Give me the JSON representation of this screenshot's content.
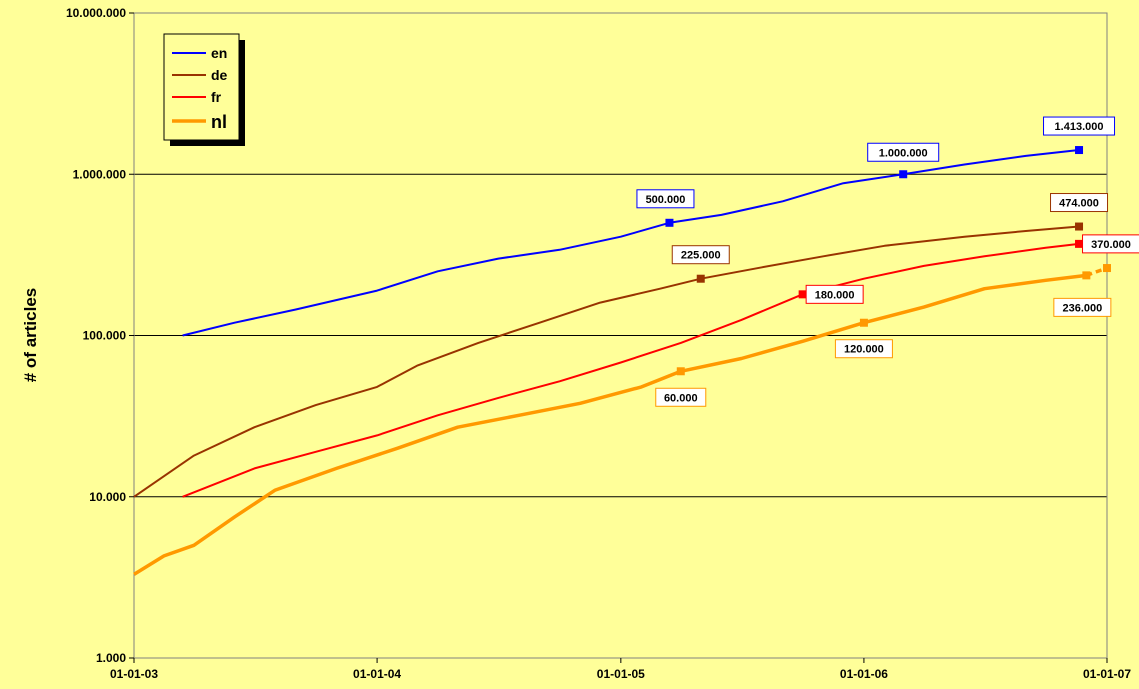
{
  "chart_data": {
    "type": "line",
    "ylabel": "# of articles",
    "yscale": "log",
    "ylim": [
      1000,
      10000000
    ],
    "xlim": [
      "2003-01-01",
      "2007-01-01"
    ],
    "grid": "horizontal",
    "legend_position": "top-left",
    "x_tick_labels": [
      "01-01-03",
      "01-01-04",
      "01-01-05",
      "01-01-06",
      "01-01-07"
    ],
    "x_ticks": [
      "2003-01-01",
      "2004-01-01",
      "2005-01-01",
      "2006-01-01",
      "2007-01-01"
    ],
    "y_tick_labels": [
      "1.000",
      "10.000",
      "100.000",
      "1.000.000",
      "10.000.000"
    ],
    "y_ticks": [
      1000,
      10000,
      100000,
      1000000,
      10000000
    ],
    "series": [
      {
        "name": "en",
        "color": "#0000FF",
        "points": [
          [
            "2003-03-15",
            100000
          ],
          [
            "2003-06-01",
            120000
          ],
          [
            "2003-09-01",
            145000
          ],
          [
            "2004-01-01",
            190000
          ],
          [
            "2004-04-01",
            250000
          ],
          [
            "2004-07-01",
            300000
          ],
          [
            "2004-10-01",
            340000
          ],
          [
            "2005-01-01",
            410000
          ],
          [
            "2005-03-15",
            500000
          ],
          [
            "2005-06-01",
            560000
          ],
          [
            "2005-09-01",
            680000
          ],
          [
            "2005-12-01",
            880000
          ],
          [
            "2006-03-01",
            1000000
          ],
          [
            "2006-06-01",
            1150000
          ],
          [
            "2006-09-01",
            1300000
          ],
          [
            "2006-11-20",
            1413000
          ]
        ]
      },
      {
        "name": "de",
        "color": "#993300",
        "points": [
          [
            "2003-01-01",
            10000
          ],
          [
            "2003-04-01",
            18000
          ],
          [
            "2003-07-01",
            27000
          ],
          [
            "2003-10-01",
            37000
          ],
          [
            "2004-01-01",
            48000
          ],
          [
            "2004-03-01",
            65000
          ],
          [
            "2004-06-01",
            90000
          ],
          [
            "2004-09-01",
            120000
          ],
          [
            "2004-12-01",
            160000
          ],
          [
            "2005-03-01",
            195000
          ],
          [
            "2005-05-01",
            225000
          ],
          [
            "2005-08-01",
            265000
          ],
          [
            "2005-11-01",
            310000
          ],
          [
            "2006-02-01",
            360000
          ],
          [
            "2006-06-01",
            410000
          ],
          [
            "2006-09-01",
            445000
          ],
          [
            "2006-11-20",
            474000
          ]
        ]
      },
      {
        "name": "fr",
        "color": "#FF0000",
        "points": [
          [
            "2003-03-15",
            10000
          ],
          [
            "2003-07-01",
            15000
          ],
          [
            "2003-10-01",
            19000
          ],
          [
            "2004-01-01",
            24000
          ],
          [
            "2004-04-01",
            32000
          ],
          [
            "2004-07-01",
            41000
          ],
          [
            "2004-10-01",
            52000
          ],
          [
            "2005-01-01",
            68000
          ],
          [
            "2005-04-01",
            90000
          ],
          [
            "2005-07-01",
            125000
          ],
          [
            "2005-10-01",
            180000
          ],
          [
            "2006-01-01",
            225000
          ],
          [
            "2006-04-01",
            270000
          ],
          [
            "2006-07-01",
            310000
          ],
          [
            "2006-10-01",
            350000
          ],
          [
            "2006-11-20",
            370000
          ]
        ]
      },
      {
        "name": "nl",
        "color": "#FF9900",
        "points": [
          [
            "2003-01-01",
            3300
          ],
          [
            "2003-02-15",
            4300
          ],
          [
            "2003-04-01",
            5000
          ],
          [
            "2003-06-01",
            7500
          ],
          [
            "2003-08-01",
            11000
          ],
          [
            "2003-11-01",
            15000
          ],
          [
            "2004-02-01",
            20000
          ],
          [
            "2004-05-01",
            27000
          ],
          [
            "2004-08-01",
            32000
          ],
          [
            "2004-11-01",
            38000
          ],
          [
            "2005-02-01",
            48000
          ],
          [
            "2005-04-01",
            60000
          ],
          [
            "2005-07-01",
            72000
          ],
          [
            "2005-10-01",
            92000
          ],
          [
            "2006-01-01",
            120000
          ],
          [
            "2006-04-01",
            150000
          ],
          [
            "2006-07-01",
            195000
          ],
          [
            "2006-10-01",
            220000
          ],
          [
            "2006-12-01",
            236000
          ]
        ],
        "projection": [
          [
            "2006-12-01",
            236000
          ],
          [
            "2007-01-01",
            262000
          ]
        ]
      }
    ],
    "annotations": [
      {
        "text": "1.413.000",
        "x": "2006-11-20",
        "y": 1413000,
        "color": "#0000FF",
        "box": true
      },
      {
        "text": "1.000.000",
        "x": "2006-03-01",
        "y": 1000000,
        "color": "#0000FF",
        "box": true
      },
      {
        "text": "500.000",
        "x": "2005-03-15",
        "y": 500000,
        "color": "#0000FF",
        "box": true
      },
      {
        "text": "474.000",
        "x": "2006-11-20",
        "y": 474000,
        "color": "#993300",
        "box": true
      },
      {
        "text": "225.000",
        "x": "2005-05-01",
        "y": 225000,
        "color": "#993300",
        "box": true
      },
      {
        "text": "370.000",
        "x": "2006-11-20",
        "y": 370000,
        "color": "#FF0000",
        "box": true
      },
      {
        "text": "180.000",
        "x": "2005-10-01",
        "y": 180000,
        "color": "#FF0000",
        "box": true
      },
      {
        "text": "236.000",
        "x": "2006-12-01",
        "y": 236000,
        "color": "#FF9900",
        "box": true
      },
      {
        "text": "120.000",
        "x": "2006-01-01",
        "y": 120000,
        "color": "#FF9900",
        "box": true
      },
      {
        "text": "60.000",
        "x": "2005-04-01",
        "y": 60000,
        "color": "#FF9900",
        "box": true
      }
    ]
  }
}
